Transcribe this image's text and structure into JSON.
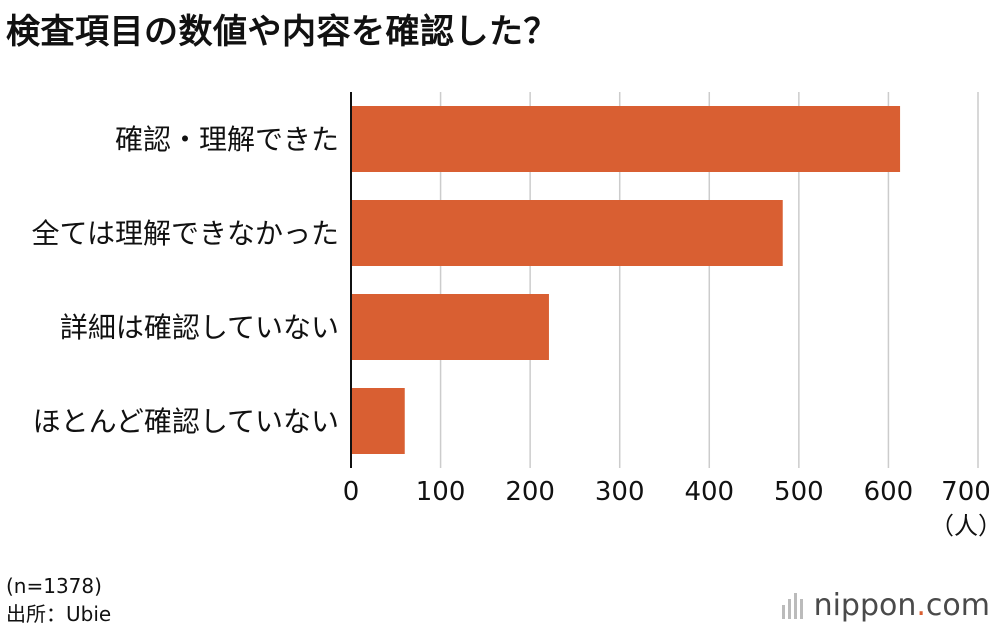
{
  "title": "検査項目の数値や内容を確認した？",
  "footnotes": {
    "sample": "(n=1378)",
    "source": "出所：Ubie"
  },
  "brand": {
    "name": "nippon",
    "dot": ".",
    "tld": "com"
  },
  "colors": {
    "bar": "#d95f32",
    "grid": "#cccccc",
    "axis": "#111111"
  },
  "chart_data": {
    "type": "bar",
    "orientation": "horizontal",
    "categories": [
      "確認・理解できた",
      "全ては理解できなかった",
      "詳細は確認していない",
      "ほとんど確認していない"
    ],
    "values": [
      613,
      482,
      221,
      60
    ],
    "xlim": [
      0,
      700
    ],
    "xticks": [
      0,
      100,
      200,
      300,
      400,
      500,
      600,
      700
    ],
    "unit_label": "（人）",
    "grid": true,
    "legend": "none"
  }
}
